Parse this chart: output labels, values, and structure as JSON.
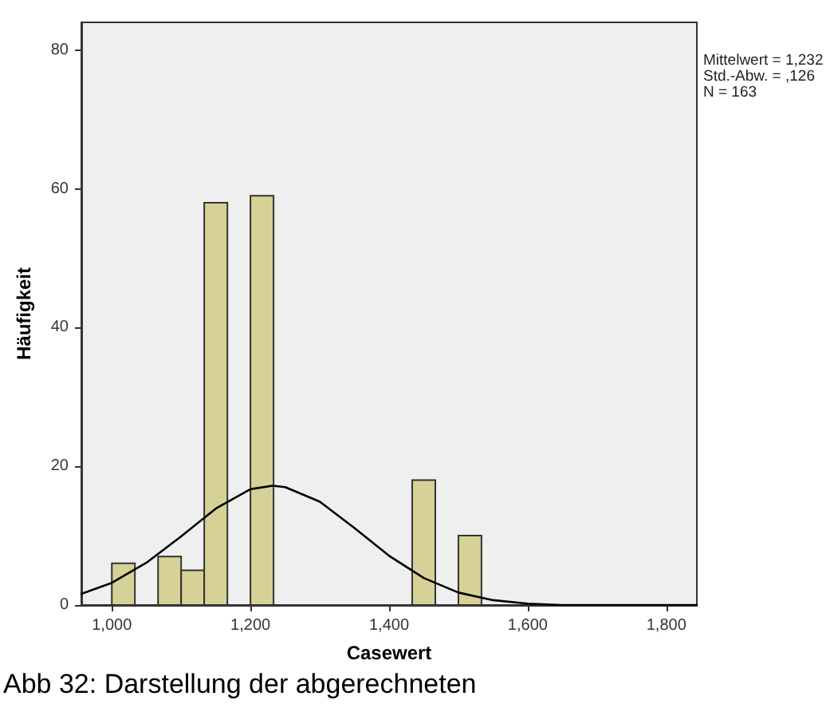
{
  "chart_data": {
    "type": "histogram",
    "xlabel": "Casewert",
    "ylabel": "Häufigkeit",
    "bins": [
      1000,
      1033.3,
      1066.7,
      1100,
      1133.3,
      1166.7,
      1200,
      1233.3,
      1266.7,
      1300,
      1333.3,
      1366.7,
      1400,
      1433.3,
      1466.7,
      1500,
      1533.3
    ],
    "values": [
      6,
      0,
      7,
      5,
      58,
      0,
      59,
      0,
      0,
      0,
      0,
      0,
      0,
      18,
      0,
      10
    ],
    "color": "#d6d197",
    "series": [
      {
        "type": "line",
        "color": "#000000",
        "marker": "none",
        "line_style": "solid",
        "x": [
          956,
          1000,
          1050,
          1100,
          1150,
          1200,
          1232,
          1250,
          1300,
          1350,
          1400,
          1450,
          1500,
          1550,
          1600,
          1650,
          1700,
          1844
        ],
        "values": [
          1.6,
          3.2,
          6.1,
          9.9,
          13.9,
          16.7,
          17.2,
          17.0,
          14.9,
          11.1,
          7.1,
          3.9,
          1.8,
          0.7,
          0.2,
          0,
          0,
          0
        ]
      }
    ],
    "xlim": [
      956,
      1844
    ],
    "xticks": [
      {
        "value": 1000,
        "label": "1,000"
      },
      {
        "value": 1200,
        "label": "1,200"
      },
      {
        "value": 1400,
        "label": "1,400"
      },
      {
        "value": 1600,
        "label": "1,600"
      },
      {
        "value": 1800,
        "label": "1,800"
      }
    ],
    "ylim": [
      0,
      84
    ],
    "yticks": [
      0,
      20,
      40,
      60,
      80
    ],
    "grid": false,
    "annotations": [
      "Mittelwert = 1,232\nStd.-Abw. = ,126\nN = 163",
      "Abb 32: Darstellung der abgerechneten"
    ]
  }
}
